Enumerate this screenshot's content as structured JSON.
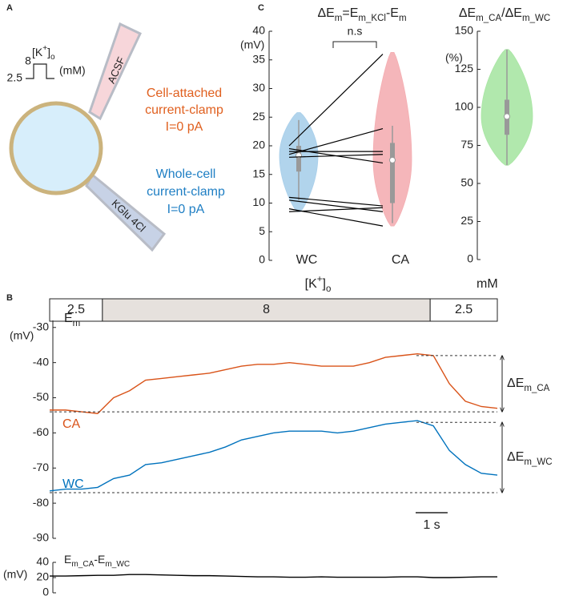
{
  "panel_labels": [
    "A",
    "B",
    "C"
  ],
  "diagram": {
    "stimulus_label": [
      {
        "text": "[K"
      },
      {
        "text": "+",
        "shift": "sup"
      },
      {
        "text": "]"
      },
      {
        "text": "o",
        "shift": "sub"
      }
    ],
    "stimulus_levels": [
      8,
      2.5
    ],
    "stimulus_unit": "(mM)",
    "pipette_top": "ACSF",
    "pipette_bottom": "KGlu 4Cl",
    "top_recording": [
      "Cell-attached",
      "current-clamp",
      "I=0 pA"
    ],
    "bottom_recording": [
      "Whole-cell",
      "current-clamp",
      "I=0 pA"
    ]
  },
  "chart_data": [
    {
      "type": "violin_pairs",
      "title": [
        {
          "text": "ΔE"
        },
        {
          "text": "m",
          "shift": "sub"
        },
        {
          "text": "=E"
        },
        {
          "text": "m_KCl",
          "shift": "sub"
        },
        {
          "text": "-E"
        },
        {
          "text": "m",
          "shift": "sub"
        }
      ],
      "ylabel": "(mV)",
      "ylim": [
        0,
        40
      ],
      "yticks": [
        0,
        5,
        10,
        15,
        20,
        25,
        30,
        35,
        40
      ],
      "categories": [
        "WC",
        "CA"
      ],
      "colors": [
        "#a9cfea",
        "#f4aeb2"
      ],
      "stats": [
        {
          "range": [
            8.5,
            25.8
          ],
          "whisker": [
            10.5,
            24.5
          ],
          "q1": 15.5,
          "median": 18.3,
          "q3": 20
        },
        {
          "range": [
            6,
            36.3
          ],
          "whisker": [
            6.5,
            23.5
          ],
          "q1": 10,
          "median": 17.5,
          "q3": 20.5
        }
      ],
      "paired_values": [
        [
          20,
          19.5,
          19,
          18.5,
          18,
          11,
          10.5,
          9,
          8.5
        ],
        [
          36,
          17,
          19,
          23,
          18.5,
          9.5,
          8.5,
          6,
          9.2
        ]
      ],
      "annotation": "n.s"
    },
    {
      "type": "violin",
      "title": [
        {
          "text": "ΔE"
        },
        {
          "text": "m_CA",
          "shift": "sub"
        },
        {
          "text": "/ΔE"
        },
        {
          "text": "m_WC",
          "shift": "sub"
        }
      ],
      "ylabel": "(%)",
      "ylim": [
        0,
        150
      ],
      "yticks": [
        0,
        25,
        50,
        75,
        100,
        125,
        150
      ],
      "color": "#a9e6a4",
      "stats": {
        "range": [
          62,
          138
        ],
        "whisker": [
          62,
          138
        ],
        "q1": 82,
        "median": 94,
        "q3": 105
      }
    },
    {
      "type": "stimulus",
      "title": [
        {
          "text": "[K"
        },
        {
          "text": "+",
          "shift": "sup"
        },
        {
          "text": "]"
        },
        {
          "text": "o",
          "shift": "sub"
        }
      ],
      "unit": "mM",
      "xlim": [
        0,
        14
      ],
      "segments": [
        {
          "value": 2.5,
          "start": 0,
          "end": 1.65,
          "color": "#ffffff"
        },
        {
          "value": 8,
          "start": 1.65,
          "end": 11.9,
          "color": "#e6e1dd"
        },
        {
          "value": 2.5,
          "start": 11.9,
          "end": 14,
          "color": "#ffffff"
        }
      ]
    },
    {
      "type": "line",
      "ylabel": [
        {
          "text": "E"
        },
        {
          "text": "m",
          "shift": "sub"
        }
      ],
      "yunit": "(mV)",
      "ylim": [
        -90,
        -28
      ],
      "yticks": [
        -90,
        -80,
        -70,
        -60,
        -50,
        -40,
        -30
      ],
      "xlim": [
        0,
        14
      ],
      "x": [
        0,
        0.5,
        1,
        1.5,
        2,
        2.5,
        3,
        3.5,
        4,
        4.5,
        5,
        5.5,
        6,
        6.5,
        7,
        7.5,
        8,
        8.5,
        9,
        9.5,
        10,
        10.5,
        11,
        11.5,
        12,
        12.5,
        13,
        13.5,
        14
      ],
      "series": [
        {
          "name": "CA",
          "color": "#d95319",
          "values": [
            -53.5,
            -53.5,
            -54,
            -54.5,
            -50,
            -48,
            -45,
            -44.5,
            -44,
            -43.5,
            -43,
            -42,
            -41,
            -40.5,
            -40.5,
            -40,
            -40.5,
            -41,
            -41,
            -41,
            -40,
            -38.5,
            -38,
            -37.5,
            -38,
            -46,
            -51,
            -52.5,
            -53
          ]
        },
        {
          "name": "WC",
          "color": "#0072bd",
          "values": [
            -76.5,
            -76,
            -76,
            -75.5,
            -73,
            -72,
            -69,
            -68.5,
            -67.5,
            -66.5,
            -65.5,
            -64,
            -62,
            -61,
            -60,
            -59.5,
            -59.5,
            -59.5,
            -60,
            -59.5,
            -58.5,
            -57.5,
            -57,
            -56.5,
            -58,
            -65,
            -69,
            -71.5,
            -72
          ]
        }
      ],
      "levels": [
        {
          "low": -54,
          "high": -38,
          "label": [
            {
              "text": "ΔE"
            },
            {
              "text": "m_CA",
              "shift": "sub"
            }
          ]
        },
        {
          "low": -77,
          "high": -57,
          "label": [
            {
              "text": "ΔE"
            },
            {
              "text": "m_WC",
              "shift": "sub"
            }
          ]
        }
      ],
      "scalebar": {
        "value": 1,
        "label": "1 s"
      }
    },
    {
      "type": "line",
      "ylabel": [
        {
          "text": "E"
        },
        {
          "text": "m_CA",
          "shift": "sub"
        },
        {
          "text": "-E"
        },
        {
          "text": "m_WC",
          "shift": "sub"
        }
      ],
      "yunit": "(mV)",
      "ylim": [
        0,
        40
      ],
      "yticks": [
        0,
        20,
        40
      ],
      "xlim": [
        0,
        14
      ],
      "x": [
        0,
        0.5,
        1,
        1.5,
        2,
        2.5,
        3,
        3.5,
        4,
        4.5,
        5,
        5.5,
        6,
        6.5,
        7,
        7.5,
        8,
        8.5,
        9,
        9.5,
        10,
        10.5,
        11,
        11.5,
        12,
        12.5,
        13,
        13.5,
        14
      ],
      "series": [
        {
          "color": "#000000",
          "values": [
            22,
            22,
            22.5,
            23,
            23,
            24,
            24,
            23.5,
            23,
            22.5,
            22.5,
            22,
            21.5,
            21,
            21,
            20.5,
            20.5,
            21,
            20.5,
            20.5,
            20.5,
            20.5,
            21,
            21,
            20,
            20,
            20.5,
            21,
            21
          ]
        }
      ]
    }
  ]
}
